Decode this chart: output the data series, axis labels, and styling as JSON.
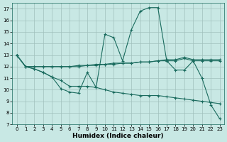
{
  "xlabel": "Humidex (Indice chaleur)",
  "bg_color": "#c8e8e4",
  "grid_color": "#a0c0bc",
  "line_color": "#1a6b5e",
  "xlim": [
    -0.5,
    23.5
  ],
  "ylim": [
    7,
    17.5
  ],
  "yticks": [
    7,
    8,
    9,
    10,
    11,
    12,
    13,
    14,
    15,
    16,
    17
  ],
  "xticks": [
    0,
    1,
    2,
    3,
    4,
    5,
    6,
    7,
    8,
    9,
    10,
    11,
    12,
    13,
    14,
    15,
    16,
    17,
    18,
    19,
    20,
    21,
    22,
    23
  ],
  "lines": [
    {
      "x": [
        0,
        1,
        2,
        3,
        4,
        5,
        6,
        7,
        8,
        9,
        10,
        11,
        12,
        13,
        14,
        15,
        16,
        17,
        18,
        19,
        20,
        21,
        22,
        23
      ],
      "y": [
        13.0,
        12.0,
        11.8,
        11.5,
        11.1,
        10.1,
        9.8,
        9.7,
        11.5,
        10.2,
        14.8,
        14.5,
        12.5,
        15.2,
        16.8,
        17.1,
        17.1,
        12.5,
        11.7,
        11.7,
        12.5,
        11.0,
        8.7,
        7.5
      ]
    },
    {
      "x": [
        0,
        1,
        2,
        3,
        4,
        5,
        6,
        7,
        8,
        9,
        10,
        11,
        12,
        13,
        14,
        15,
        16,
        17,
        18,
        19,
        20,
        21,
        22,
        23
      ],
      "y": [
        13.0,
        12.0,
        12.0,
        12.0,
        12.0,
        12.0,
        12.0,
        12.0,
        12.1,
        12.1,
        12.2,
        12.2,
        12.3,
        12.3,
        12.4,
        12.4,
        12.5,
        12.6,
        12.6,
        12.8,
        12.6,
        12.6,
        12.6,
        12.6
      ]
    },
    {
      "x": [
        0,
        1,
        2,
        3,
        4,
        5,
        6,
        7,
        8,
        9,
        10,
        11,
        12,
        13,
        14,
        15,
        16,
        17,
        18,
        19,
        20,
        21,
        22,
        23
      ],
      "y": [
        13.0,
        12.0,
        12.0,
        12.0,
        12.0,
        12.0,
        12.0,
        12.1,
        12.1,
        12.2,
        12.2,
        12.3,
        12.3,
        12.3,
        12.4,
        12.4,
        12.5,
        12.5,
        12.5,
        12.7,
        12.5,
        12.5,
        12.5,
        12.5
      ]
    },
    {
      "x": [
        0,
        1,
        2,
        3,
        4,
        5,
        6,
        7,
        8,
        9,
        10,
        11,
        12,
        13,
        14,
        15,
        16,
        17,
        18,
        19,
        20,
        21,
        22,
        23
      ],
      "y": [
        13.0,
        12.0,
        11.8,
        11.5,
        11.1,
        10.8,
        10.3,
        10.3,
        10.3,
        10.2,
        10.0,
        9.8,
        9.7,
        9.6,
        9.5,
        9.5,
        9.5,
        9.4,
        9.3,
        9.2,
        9.1,
        9.0,
        8.9,
        8.8
      ]
    }
  ]
}
